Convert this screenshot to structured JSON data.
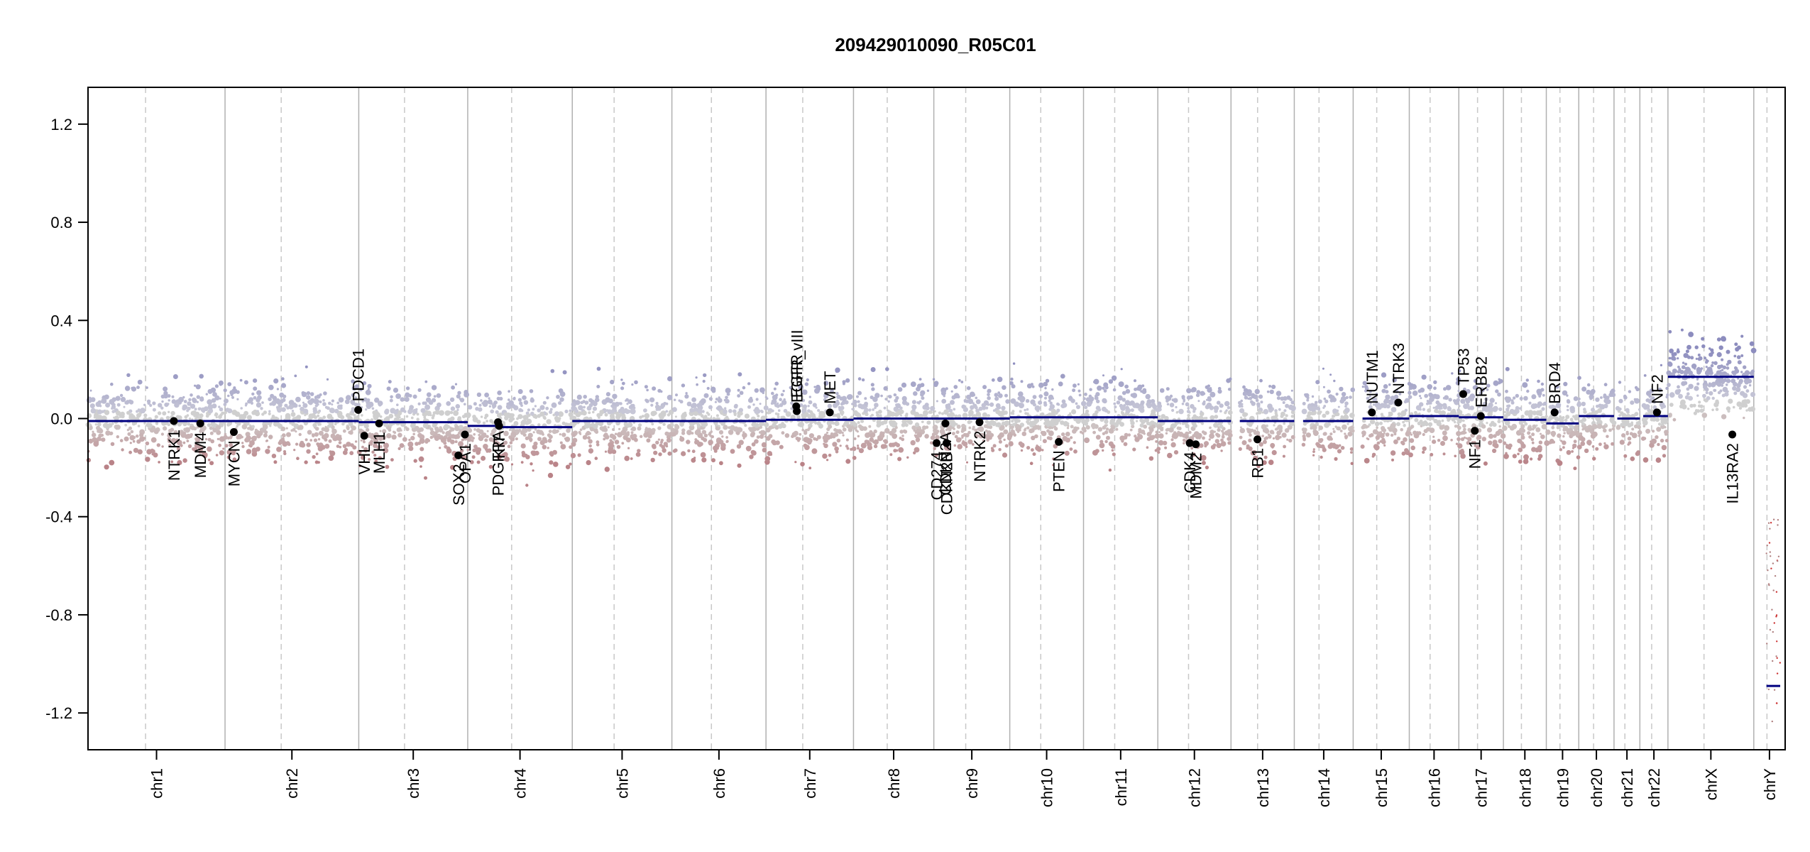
{
  "title": "209429010090_R05C01",
  "chart_data": {
    "type": "scatter",
    "title": "209429010090_R05C01",
    "xlabel": "",
    "ylabel": "",
    "ylim": [
      -1.35,
      1.35
    ],
    "y_ticks": [
      "1.2",
      "0.8",
      "0.4",
      "0.0",
      "-0.4",
      "-0.8",
      "-1.2"
    ],
    "y_tick_values": [
      1.2,
      0.8,
      0.4,
      0.0,
      -0.4,
      -0.8,
      -1.2
    ],
    "colors": {
      "gain": "#8b8bbe",
      "loss": "#b98486",
      "neutral": "#c8c8c8",
      "segment": "#000080",
      "gene": "#000000",
      "boundary": "#aaaaaa"
    },
    "chromosomes": [
      {
        "name": "chr1",
        "start": 0,
        "end": 249,
        "segments": [
          {
            "from": 0,
            "to": 249,
            "value": -0.01
          }
        ]
      },
      {
        "name": "chr2",
        "start": 249,
        "end": 492,
        "segments": [
          {
            "from": 249,
            "to": 492,
            "value": -0.01
          }
        ]
      },
      {
        "name": "chr3",
        "start": 492,
        "end": 690,
        "segments": [
          {
            "from": 492,
            "to": 690,
            "value": -0.015
          }
        ]
      },
      {
        "name": "chr4",
        "start": 690,
        "end": 880,
        "segments": [
          {
            "from": 690,
            "to": 740,
            "value": -0.03
          },
          {
            "from": 740,
            "to": 880,
            "value": -0.035
          }
        ]
      },
      {
        "name": "chr5",
        "start": 880,
        "end": 1061,
        "segments": [
          {
            "from": 880,
            "to": 1061,
            "value": -0.01
          }
        ]
      },
      {
        "name": "chr6",
        "start": 1061,
        "end": 1232,
        "segments": [
          {
            "from": 1061,
            "to": 1232,
            "value": -0.01
          }
        ]
      },
      {
        "name": "chr7",
        "start": 1232,
        "end": 1391,
        "segments": [
          {
            "from": 1232,
            "to": 1391,
            "value": -0.005
          }
        ]
      },
      {
        "name": "chr8",
        "start": 1391,
        "end": 1537,
        "segments": [
          {
            "from": 1391,
            "to": 1537,
            "value": 0.0
          }
        ]
      },
      {
        "name": "chr9",
        "start": 1537,
        "end": 1675,
        "segments": [
          {
            "from": 1537,
            "to": 1675,
            "value": 0.0
          }
        ]
      },
      {
        "name": "chr10",
        "start": 1675,
        "end": 1809,
        "segments": [
          {
            "from": 1675,
            "to": 1809,
            "value": 0.005
          }
        ]
      },
      {
        "name": "chr11",
        "start": 1809,
        "end": 1944,
        "segments": [
          {
            "from": 1809,
            "to": 1944,
            "value": 0.005
          }
        ]
      },
      {
        "name": "chr12",
        "start": 1944,
        "end": 2077,
        "segments": [
          {
            "from": 1944,
            "to": 2077,
            "value": -0.01
          }
        ]
      },
      {
        "name": "chr13",
        "start": 2077,
        "end": 2192,
        "segments": [
          {
            "from": 2093,
            "to": 2192,
            "value": -0.01
          }
        ]
      },
      {
        "name": "chr14",
        "start": 2192,
        "end": 2299,
        "segments": [
          {
            "from": 2208,
            "to": 2299,
            "value": -0.01
          }
        ]
      },
      {
        "name": "chr15",
        "start": 2299,
        "end": 2401,
        "segments": [
          {
            "from": 2316,
            "to": 2401,
            "value": 0.0
          }
        ]
      },
      {
        "name": "chr16",
        "start": 2401,
        "end": 2491,
        "segments": [
          {
            "from": 2401,
            "to": 2491,
            "value": 0.01
          }
        ]
      },
      {
        "name": "chr17",
        "start": 2491,
        "end": 2572,
        "segments": [
          {
            "from": 2491,
            "to": 2572,
            "value": 0.005
          }
        ]
      },
      {
        "name": "chr18",
        "start": 2572,
        "end": 2650,
        "segments": [
          {
            "from": 2572,
            "to": 2650,
            "value": -0.005
          }
        ]
      },
      {
        "name": "chr19",
        "start": 2650,
        "end": 2709,
        "segments": [
          {
            "from": 2650,
            "to": 2709,
            "value": -0.02
          }
        ]
      },
      {
        "name": "chr20",
        "start": 2709,
        "end": 2773,
        "segments": [
          {
            "from": 2709,
            "to": 2773,
            "value": 0.01
          }
        ]
      },
      {
        "name": "chr21",
        "start": 2773,
        "end": 2820,
        "segments": [
          {
            "from": 2779,
            "to": 2820,
            "value": 0.0
          }
        ]
      },
      {
        "name": "chr22",
        "start": 2820,
        "end": 2871,
        "segments": [
          {
            "from": 2826,
            "to": 2871,
            "value": 0.01
          }
        ]
      },
      {
        "name": "chrX",
        "start": 2871,
        "end": 3027,
        "segments": [
          {
            "from": 2871,
            "to": 3027,
            "value": 0.17
          }
        ]
      },
      {
        "name": "chrY",
        "start": 3027,
        "end": 3084,
        "segments": [
          {
            "from": 3050,
            "to": 3075,
            "value": -1.09
          }
        ]
      }
    ],
    "genes": [
      {
        "name": "NTRK1",
        "pos": 156,
        "value": -0.01,
        "label_side": "below"
      },
      {
        "name": "MDM4",
        "pos": 204,
        "value": -0.02,
        "label_side": "below"
      },
      {
        "name": "MYCN",
        "pos": 265,
        "value": -0.055,
        "label_side": "below"
      },
      {
        "name": "PDCD1",
        "pos": 491,
        "value": 0.035,
        "label_side": "above"
      },
      {
        "name": "VHL",
        "pos": 502,
        "value": -0.07,
        "label_side": "below"
      },
      {
        "name": "MLH1",
        "pos": 529,
        "value": -0.02,
        "label_side": "below"
      },
      {
        "name": "SOX2",
        "pos": 673,
        "value": -0.15,
        "label_side": "below"
      },
      {
        "name": "OPA1",
        "pos": 685,
        "value": -0.065,
        "label_side": "below"
      },
      {
        "name": "PDGFRA",
        "pos": 745,
        "value": -0.015,
        "label_side": "below"
      },
      {
        "name": "KIT",
        "pos": 747,
        "value": -0.03,
        "label_side": "below"
      },
      {
        "name": "EGFR",
        "pos": 1287,
        "value": 0.05,
        "label_side": "above"
      },
      {
        "name": "EGFR_vIII",
        "pos": 1288,
        "value": 0.03,
        "label_side": "above"
      },
      {
        "name": "MET",
        "pos": 1348,
        "value": 0.025,
        "label_side": "above"
      },
      {
        "name": "CD274",
        "pos": 1542,
        "value": -0.1,
        "label_side": "below"
      },
      {
        "name": "CDKN2A",
        "pos": 1558,
        "value": -0.02,
        "label_side": "below"
      },
      {
        "name": "CDKN2B",
        "pos": 1560,
        "value": -0.1,
        "label_side": "below"
      },
      {
        "name": "NTRK2",
        "pos": 1620,
        "value": -0.015,
        "label_side": "below"
      },
      {
        "name": "PTEN",
        "pos": 1764,
        "value": -0.095,
        "label_side": "below"
      },
      {
        "name": "CDK4",
        "pos": 2002,
        "value": -0.1,
        "label_side": "below"
      },
      {
        "name": "MDM2",
        "pos": 2013,
        "value": -0.105,
        "label_side": "below"
      },
      {
        "name": "RB1",
        "pos": 2125,
        "value": -0.085,
        "label_side": "below"
      },
      {
        "name": "NUTM1",
        "pos": 2333,
        "value": 0.025,
        "label_side": "above"
      },
      {
        "name": "NTRK3",
        "pos": 2381,
        "value": 0.065,
        "label_side": "above"
      },
      {
        "name": "TP53",
        "pos": 2499,
        "value": 0.1,
        "label_side": "above"
      },
      {
        "name": "NF1",
        "pos": 2520,
        "value": -0.05,
        "label_side": "below"
      },
      {
        "name": "ERBB2",
        "pos": 2531,
        "value": 0.01,
        "label_side": "above"
      },
      {
        "name": "BRD4",
        "pos": 2665,
        "value": 0.025,
        "label_side": "above"
      },
      {
        "name": "NF2",
        "pos": 2851,
        "value": 0.025,
        "label_side": "above"
      },
      {
        "name": "IL13RA2",
        "pos": 2988,
        "value": -0.065,
        "label_side": "below"
      }
    ]
  }
}
